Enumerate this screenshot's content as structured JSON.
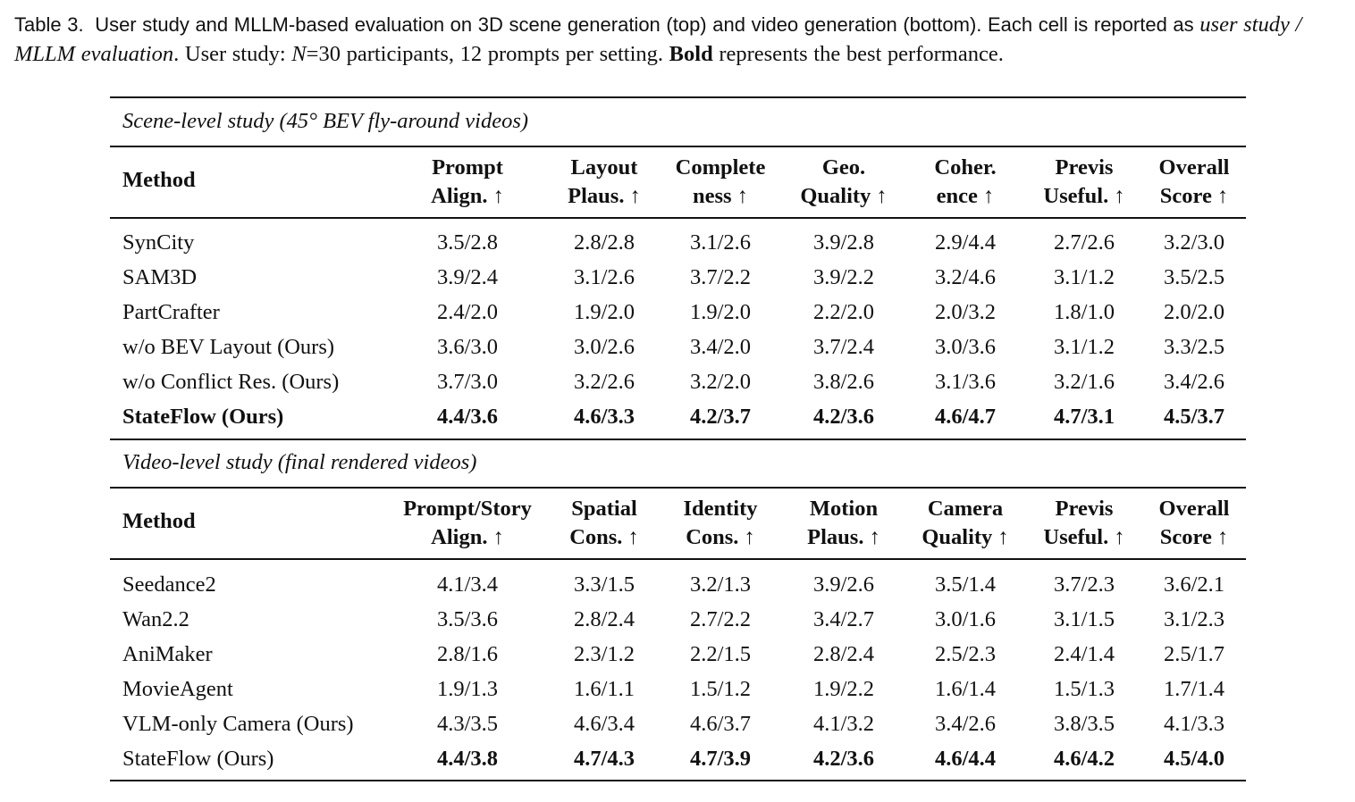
{
  "caption": {
    "label": "Table 3.",
    "text_1": "User study and MLLM-based evaluation on 3D scene generation (top) and video generation (bottom). Each cell is reported as",
    "text_2_italic": "user study / MLLM evaluation",
    "text_3": ". User study: ",
    "n_symbol": "N",
    "text_4": "=30 participants, 12 prompts per setting. ",
    "bold_word": "Bold",
    "text_5": " represents the best performance."
  },
  "scene": {
    "title": "Scene-level study (45° BEV fly-around videos)",
    "method_header": "Method",
    "columns": [
      {
        "line1": "Prompt",
        "line2": "Align. ↑"
      },
      {
        "line1": "Layout",
        "line2": "Plaus. ↑"
      },
      {
        "line1": "Complete",
        "line2": "ness ↑"
      },
      {
        "line1": "Geo.",
        "line2": "Quality ↑"
      },
      {
        "line1": "Coher.",
        "line2": "ence ↑"
      },
      {
        "line1": "Previs",
        "line2": "Useful. ↑"
      },
      {
        "line1": "Overall",
        "line2": "Score ↑"
      }
    ],
    "rows": [
      {
        "method": "SynCity",
        "values": [
          "3.5/2.8",
          "2.8/2.8",
          "3.1/2.6",
          "3.9/2.8",
          "2.9/4.4",
          "2.7/2.6",
          "3.2/3.0"
        ],
        "bold_method": false,
        "bold_values": false
      },
      {
        "method": "SAM3D",
        "values": [
          "3.9/2.4",
          "3.1/2.6",
          "3.7/2.2",
          "3.9/2.2",
          "3.2/4.6",
          "3.1/1.2",
          "3.5/2.5"
        ],
        "bold_method": false,
        "bold_values": false
      },
      {
        "method": "PartCrafter",
        "values": [
          "2.4/2.0",
          "1.9/2.0",
          "1.9/2.0",
          "2.2/2.0",
          "2.0/3.2",
          "1.8/1.0",
          "2.0/2.0"
        ],
        "bold_method": false,
        "bold_values": false
      },
      {
        "method": "w/o BEV Layout (Ours)",
        "values": [
          "3.6/3.0",
          "3.0/2.6",
          "3.4/2.0",
          "3.7/2.4",
          "3.0/3.6",
          "3.1/1.2",
          "3.3/2.5"
        ],
        "bold_method": false,
        "bold_values": false
      },
      {
        "method": "w/o Conflict Res. (Ours)",
        "values": [
          "3.7/3.0",
          "3.2/2.6",
          "3.2/2.0",
          "3.8/2.6",
          "3.1/3.6",
          "3.2/1.6",
          "3.4/2.6"
        ],
        "bold_method": false,
        "bold_values": false
      },
      {
        "method": "StateFlow (Ours)",
        "values": [
          "4.4/3.6",
          "4.6/3.3",
          "4.2/3.7",
          "4.2/3.6",
          "4.6/4.7",
          "4.7/3.1",
          "4.5/3.7"
        ],
        "bold_method": true,
        "bold_values": true
      }
    ]
  },
  "video": {
    "title": "Video-level study (final rendered videos)",
    "method_header": "Method",
    "columns": [
      {
        "line1": "Prompt/Story",
        "line2": "Align. ↑"
      },
      {
        "line1": "Spatial",
        "line2": "Cons. ↑"
      },
      {
        "line1": "Identity",
        "line2": "Cons. ↑"
      },
      {
        "line1": "Motion",
        "line2": "Plaus. ↑"
      },
      {
        "line1": "Camera",
        "line2": "Quality ↑"
      },
      {
        "line1": "Previs",
        "line2": "Useful. ↑"
      },
      {
        "line1": "Overall",
        "line2": "Score ↑"
      }
    ],
    "rows": [
      {
        "method": "Seedance2",
        "values": [
          "4.1/3.4",
          "3.3/1.5",
          "3.2/1.3",
          "3.9/2.6",
          "3.5/1.4",
          "3.7/2.3",
          "3.6/2.1"
        ],
        "bold_method": false,
        "bold_values": false
      },
      {
        "method": "Wan2.2",
        "values": [
          "3.5/3.6",
          "2.8/2.4",
          "2.7/2.2",
          "3.4/2.7",
          "3.0/1.6",
          "3.1/1.5",
          "3.1/2.3"
        ],
        "bold_method": false,
        "bold_values": false
      },
      {
        "method": "AniMaker",
        "values": [
          "2.8/1.6",
          "2.3/1.2",
          "2.2/1.5",
          "2.8/2.4",
          "2.5/2.3",
          "2.4/1.4",
          "2.5/1.7"
        ],
        "bold_method": false,
        "bold_values": false
      },
      {
        "method": "MovieAgent",
        "values": [
          "1.9/1.3",
          "1.6/1.1",
          "1.5/1.2",
          "1.9/2.2",
          "1.6/1.4",
          "1.5/1.3",
          "1.7/1.4"
        ],
        "bold_method": false,
        "bold_values": false
      },
      {
        "method": "VLM-only Camera (Ours)",
        "values": [
          "4.3/3.5",
          "4.6/3.4",
          "4.6/3.7",
          "4.1/3.2",
          "3.4/2.6",
          "3.8/3.5",
          "4.1/3.3"
        ],
        "bold_method": false,
        "bold_values": false
      },
      {
        "method": "StateFlow (Ours)",
        "values": [
          "4.4/3.8",
          "4.7/4.3",
          "4.7/3.9",
          "4.2/3.6",
          "4.6/4.4",
          "4.6/4.2",
          "4.5/4.0"
        ],
        "bold_method": false,
        "bold_values": true
      }
    ]
  }
}
